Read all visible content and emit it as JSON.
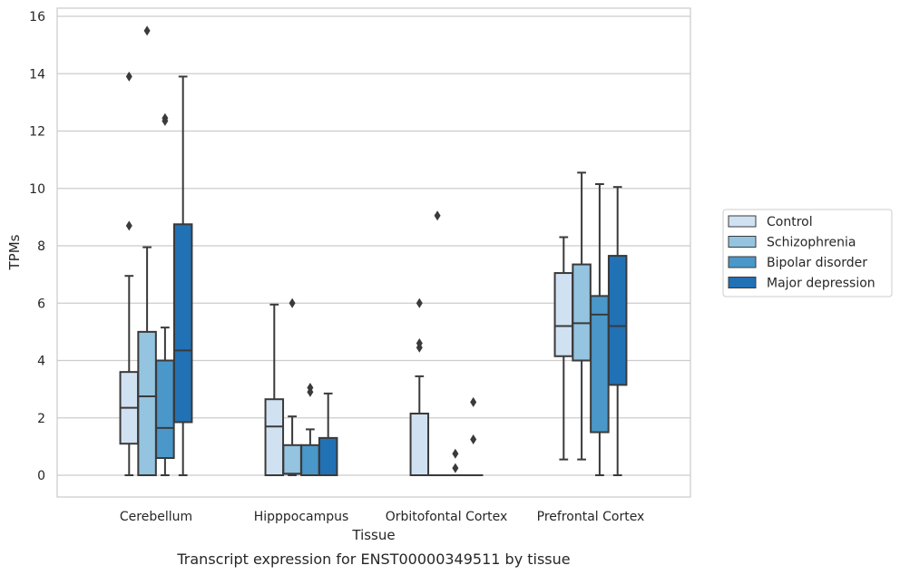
{
  "caption": "Transcript expression for ENST00000349511 by tissue",
  "chart_data": {
    "type": "boxplot",
    "xlabel": "Tissue",
    "ylabel": "TPMs",
    "ylim": [
      -0.75,
      16.3
    ],
    "yticks": [
      0,
      2,
      4,
      6,
      8,
      10,
      12,
      14,
      16
    ],
    "grid": "horizontal",
    "legend_position": "right",
    "categories": [
      "Cerebellum",
      "Hipppocampus",
      "Orbitofontal Cortex",
      "Prefrontal Cortex"
    ],
    "series": [
      {
        "name": "Control",
        "color": "#d0e1f2",
        "boxes": [
          {
            "whislo": 0,
            "q1": 1.1,
            "med": 2.35,
            "q3": 3.6,
            "whishi": 6.95,
            "fliers": [
              8.7,
              13.9
            ]
          },
          {
            "whislo": 0,
            "q1": 0,
            "med": 1.7,
            "q3": 2.65,
            "whishi": 5.95,
            "fliers": []
          },
          {
            "whislo": 0,
            "q1": 0,
            "med": 0,
            "q3": 2.15,
            "whishi": 3.45,
            "fliers": [
              4.45,
              4.6,
              6.0
            ]
          },
          {
            "whislo": 0.55,
            "q1": 4.15,
            "med": 5.2,
            "q3": 7.05,
            "whishi": 8.3,
            "fliers": []
          }
        ]
      },
      {
        "name": "Schizophrenia",
        "color": "#94c4df",
        "boxes": [
          {
            "whislo": 0,
            "q1": 0,
            "med": 2.75,
            "q3": 5.0,
            "whishi": 7.95,
            "fliers": [
              15.5
            ]
          },
          {
            "whislo": 0,
            "q1": 0.05,
            "med": 0.05,
            "q3": 1.05,
            "whishi": 2.05,
            "fliers": [
              6.0
            ]
          },
          {
            "whislo": 0,
            "q1": 0,
            "med": 0,
            "q3": 0,
            "whishi": 0,
            "fliers": [
              9.05
            ]
          },
          {
            "whislo": 0.55,
            "q1": 4.0,
            "med": 5.3,
            "q3": 7.35,
            "whishi": 10.55,
            "fliers": []
          }
        ]
      },
      {
        "name": "Bipolar disorder",
        "color": "#4a98c9",
        "boxes": [
          {
            "whislo": 0,
            "q1": 0.6,
            "med": 1.65,
            "q3": 4.0,
            "whishi": 5.15,
            "fliers": [
              12.35,
              12.45
            ]
          },
          {
            "whislo": 0,
            "q1": 0,
            "med": 0,
            "q3": 1.05,
            "whishi": 1.6,
            "fliers": [
              2.9,
              3.05
            ]
          },
          {
            "whislo": 0,
            "q1": 0,
            "med": 0,
            "q3": 0,
            "whishi": 0,
            "fliers": [
              0.25,
              0.75
            ]
          },
          {
            "whislo": 0,
            "q1": 1.5,
            "med": 5.6,
            "q3": 6.25,
            "whishi": 10.15,
            "fliers": []
          }
        ]
      },
      {
        "name": "Major depression",
        "color": "#2171b5",
        "boxes": [
          {
            "whislo": 0,
            "q1": 1.85,
            "med": 4.35,
            "q3": 8.75,
            "whishi": 13.9,
            "fliers": []
          },
          {
            "whislo": 0,
            "q1": 0,
            "med": 0,
            "q3": 1.3,
            "whishi": 2.85,
            "fliers": []
          },
          {
            "whislo": 0,
            "q1": 0,
            "med": 0,
            "q3": 0,
            "whishi": 0,
            "fliers": [
              1.25,
              2.55
            ]
          },
          {
            "whislo": 0,
            "q1": 3.15,
            "med": 5.2,
            "q3": 7.65,
            "whishi": 10.05,
            "fliers": []
          }
        ]
      }
    ]
  }
}
